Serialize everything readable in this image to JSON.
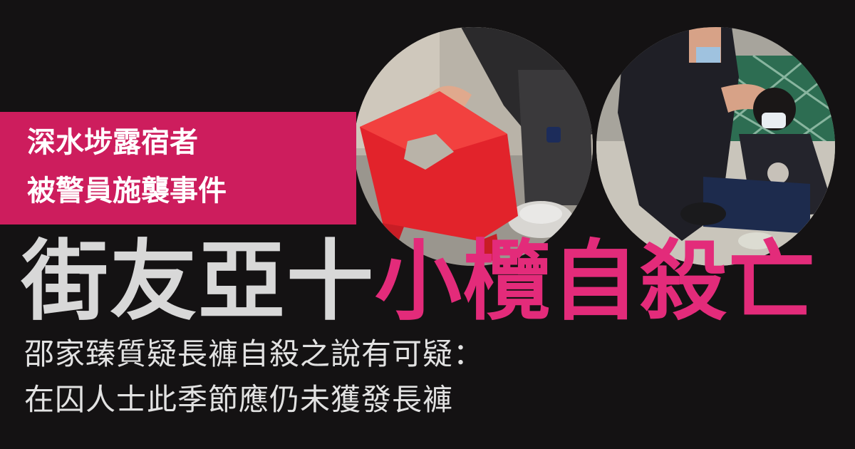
{
  "tag": {
    "line1": "深水埗露宿者",
    "line2": "被警員施襲事件"
  },
  "headline": {
    "part1": "街友亞十",
    "part2": "小欖自殺亡"
  },
  "subtitle": {
    "line1": "邵家臻質疑長褲自殺之說有可疑：",
    "line2": "在囚人士此季節應仍未獲發長褲"
  },
  "colors": {
    "background": "#141213",
    "tag_box": "#cd1d5d",
    "headline_white": "#d8d8d8",
    "headline_pink": "#e32b7a",
    "subtitle": "#e2e2e2"
  },
  "images": {
    "left": "photo-man-holding-red-stool",
    "right": "photo-officer-pressing-head-of-seated-man"
  }
}
